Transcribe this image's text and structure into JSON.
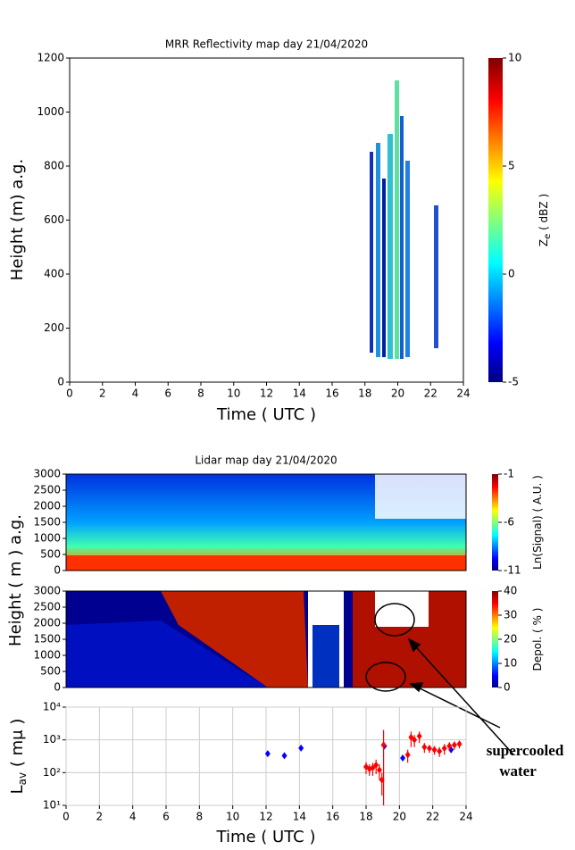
{
  "chart_data": [
    {
      "type": "heatmap",
      "title": "MRR Reflectivity map day 21/04/2020",
      "xlabel": "Time ( UTC )",
      "ylabel": "Height (m) a.g.",
      "xlim": [
        0,
        24
      ],
      "xticks": [
        0,
        2,
        4,
        6,
        8,
        10,
        12,
        14,
        16,
        18,
        20,
        22,
        24
      ],
      "ylim": [
        0,
        1200
      ],
      "yticks": [
        0,
        200,
        400,
        600,
        800,
        1000,
        1200
      ],
      "colorbar": {
        "label": [
          "Z",
          "e",
          " ( dBZ )"
        ],
        "lim": [
          -5,
          10
        ],
        "ticks": [
          -5,
          0,
          5,
          10
        ]
      }
    },
    {
      "type": "heatmap",
      "title": "Lidar map day 21/04/2020",
      "ylabel": "Height ( m ) a.g.",
      "xlim": [
        0,
        24
      ],
      "ylim": [
        0,
        3000
      ],
      "yticks": [
        0,
        500,
        1000,
        1500,
        2000,
        2500,
        3000
      ],
      "colorbar": {
        "label": [
          "Ln(Signal) ( A.U. )"
        ],
        "lim": [
          -11,
          -1
        ],
        "ticks": [
          -11,
          -6,
          -1
        ]
      }
    },
    {
      "type": "heatmap",
      "xlim": [
        0,
        24
      ],
      "ylim": [
        0,
        3000
      ],
      "yticks": [
        0,
        500,
        1000,
        1500,
        2000,
        2500,
        3000
      ],
      "colorbar": {
        "label": [
          "Depol. ( % )"
        ],
        "lim": [
          0,
          40
        ],
        "ticks": [
          0,
          10,
          20,
          30,
          40
        ]
      }
    },
    {
      "type": "scatter",
      "xlabel": "Time ( UTC )",
      "ylabel": [
        "L",
        "av",
        " ( mμ )"
      ],
      "log_y": true,
      "grid": true,
      "xlim": [
        0,
        24
      ],
      "xticks": [
        0,
        2,
        4,
        6,
        8,
        10,
        12,
        14,
        16,
        18,
        20,
        22,
        24
      ],
      "ylim": [
        10,
        10000
      ],
      "yticks": [
        {
          "value": 10,
          "label": "10¹"
        },
        {
          "value": 100,
          "label": "10²"
        },
        {
          "value": 1000,
          "label": "10³"
        },
        {
          "value": 10000,
          "label": "10⁴"
        }
      ],
      "series": [
        {
          "color": "#0000ff",
          "x": [
            12.1,
            13.1,
            14.1,
            19.1,
            20.2,
            23.1
          ],
          "values": [
            380,
            330,
            560,
            650,
            280,
            500
          ]
        },
        {
          "color": "#ff0000",
          "x": [
            18.0,
            18.2,
            18.4,
            18.6,
            18.8,
            18.95,
            19.05,
            20.5,
            20.7,
            20.9,
            21.2,
            21.5,
            21.8,
            22.1,
            22.4,
            22.7,
            23.0,
            23.3,
            23.6
          ],
          "values": [
            150,
            130,
            140,
            170,
            120,
            60,
            700,
            350,
            1200,
            1000,
            1300,
            600,
            550,
            500,
            450,
            550,
            650,
            700,
            750
          ],
          "errors": [
            60,
            50,
            60,
            80,
            60,
            40,
            1300,
            150,
            600,
            400,
            500,
            200,
            150,
            150,
            150,
            200,
            200,
            200,
            200
          ]
        }
      ],
      "annotation": [
        "supercooled",
        "water"
      ]
    }
  ]
}
